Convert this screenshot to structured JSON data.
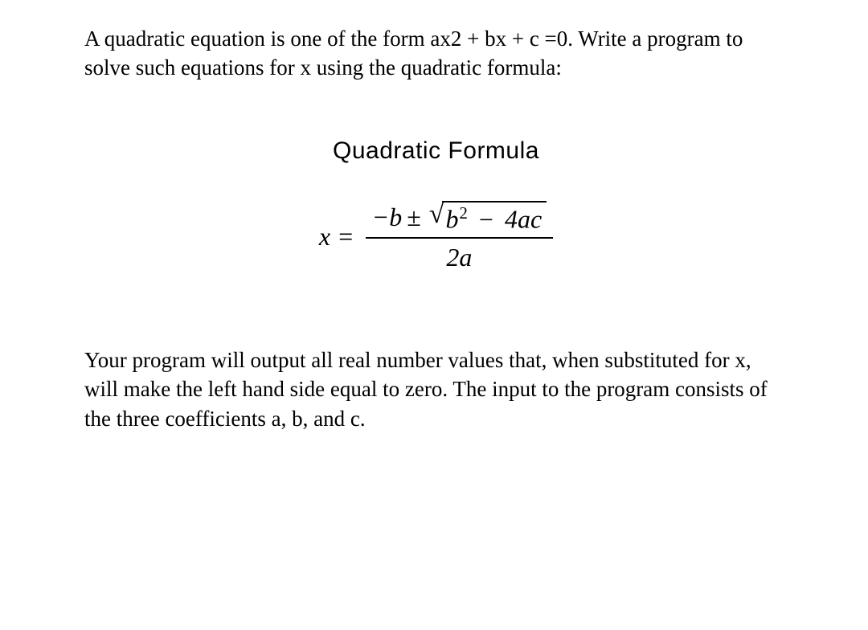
{
  "intro": "A quadratic equation is one of the form ax2 + bx + c =0. Write a program to solve such equations for x using the quadratic formula:",
  "formula": {
    "title": "Quadratic Formula",
    "lhs": "x =",
    "numerator_prefix": "−b",
    "pm": "±",
    "sqrt_sym": "√",
    "radicand_b": "b",
    "radicand_exp": "2",
    "radicand_minus": "−",
    "radicand_4ac": "4ac",
    "denominator": "2a",
    "title_fontsize": 30,
    "body_fontsize": 32,
    "text_color": "#000000",
    "background_color": "#ffffff"
  },
  "conclusion": "Your program will output all real number values that, when substituted for x, will make the left hand side equal to zero. The input to the program consists of the three coefficients a, b, and c."
}
